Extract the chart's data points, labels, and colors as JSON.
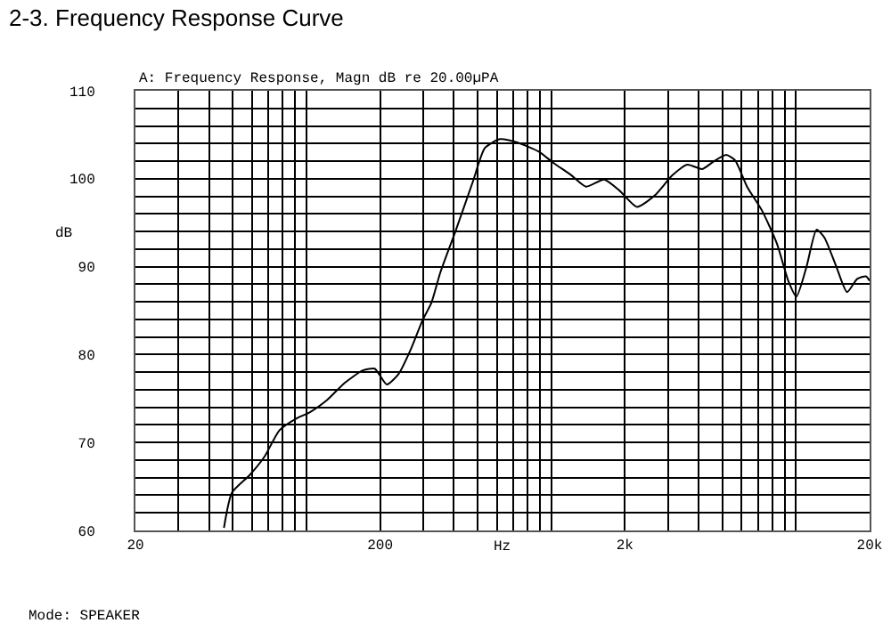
{
  "chart_data": {
    "type": "line",
    "title": "2-3. Frequency Response Curve",
    "subtitle": "A: Frequency Response, Magn dB re 20.00µPA",
    "xlabel": "Hz",
    "ylabel": "dB",
    "annotations": [
      "Mode: SPEAKER"
    ],
    "series": [
      {
        "color": "#000000",
        "x": [
          46,
          49.6,
          58.6,
          67.4,
          77.6,
          91.8,
          102.6,
          121,
          143.6,
          170,
          190,
          213,
          238,
          266,
          298,
          324,
          352,
          406,
          479,
          536,
          617,
          730,
          887,
          1021,
          1208,
          1390,
          1645,
          1892,
          2240,
          2650,
          3130,
          3600,
          4140,
          4630,
          5190,
          5640,
          6310,
          7260,
          8340,
          9330,
          10040,
          11050,
          12140,
          13070,
          14620,
          16180,
          17790,
          19330,
          20000
        ],
        "values": [
          60.3,
          64.3,
          66.3,
          68.4,
          71.4,
          72.8,
          73.4,
          74.8,
          76.8,
          78.2,
          78.4,
          76.6,
          77.8,
          80.5,
          83.9,
          85.9,
          89.3,
          94,
          99.7,
          103.5,
          104.5,
          104.1,
          103.1,
          101.8,
          100.4,
          99.1,
          99.9,
          98.7,
          96.8,
          98.1,
          100.4,
          101.6,
          101.1,
          102,
          102.7,
          102.1,
          99.1,
          96.4,
          92.7,
          88.3,
          86.6,
          90,
          94.2,
          93.3,
          90,
          87.1,
          88.6,
          88.9,
          88.4
        ]
      }
    ],
    "log": "x",
    "xlim": [
      20,
      20000
    ],
    "xticks": [
      20,
      200,
      {
        "value": 2000,
        "label": "2k"
      },
      {
        "value": 20000,
        "label": "20k"
      }
    ],
    "ylim": [
      60,
      110
    ],
    "yticks": [
      60,
      70,
      80,
      90,
      100,
      110
    ],
    "grid": true,
    "marker": "none",
    "line_style": "solid"
  }
}
